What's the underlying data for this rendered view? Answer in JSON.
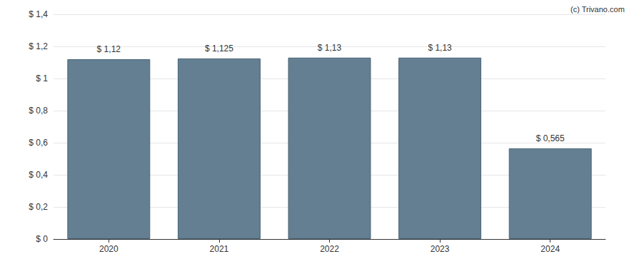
{
  "chart_data": {
    "type": "bar",
    "annotation": "(c) Trivano.com",
    "categories": [
      "2020",
      "2021",
      "2022",
      "2023",
      "2024"
    ],
    "values": [
      1.12,
      1.125,
      1.13,
      1.13,
      0.565
    ],
    "value_labels": [
      "$ 1,12",
      "$ 1,125",
      "$ 1,13",
      "$ 1,13",
      "$ 0,565"
    ],
    "data_labels": true,
    "color": "#647f92",
    "ylim": [
      0,
      1.4
    ],
    "yticks": [
      {
        "value": 0,
        "label": "$ 0"
      },
      {
        "value": 0.2,
        "label": "$ 0,2"
      },
      {
        "value": 0.4,
        "label": "$ 0,4"
      },
      {
        "value": 0.6,
        "label": "$ 0,6"
      },
      {
        "value": 0.8,
        "label": "$ 0,8"
      },
      {
        "value": 1,
        "label": "$ 1"
      },
      {
        "value": 1.2,
        "label": "$ 1,2"
      },
      {
        "value": 1.4,
        "label": "$ 1,4"
      }
    ],
    "grid": true
  }
}
